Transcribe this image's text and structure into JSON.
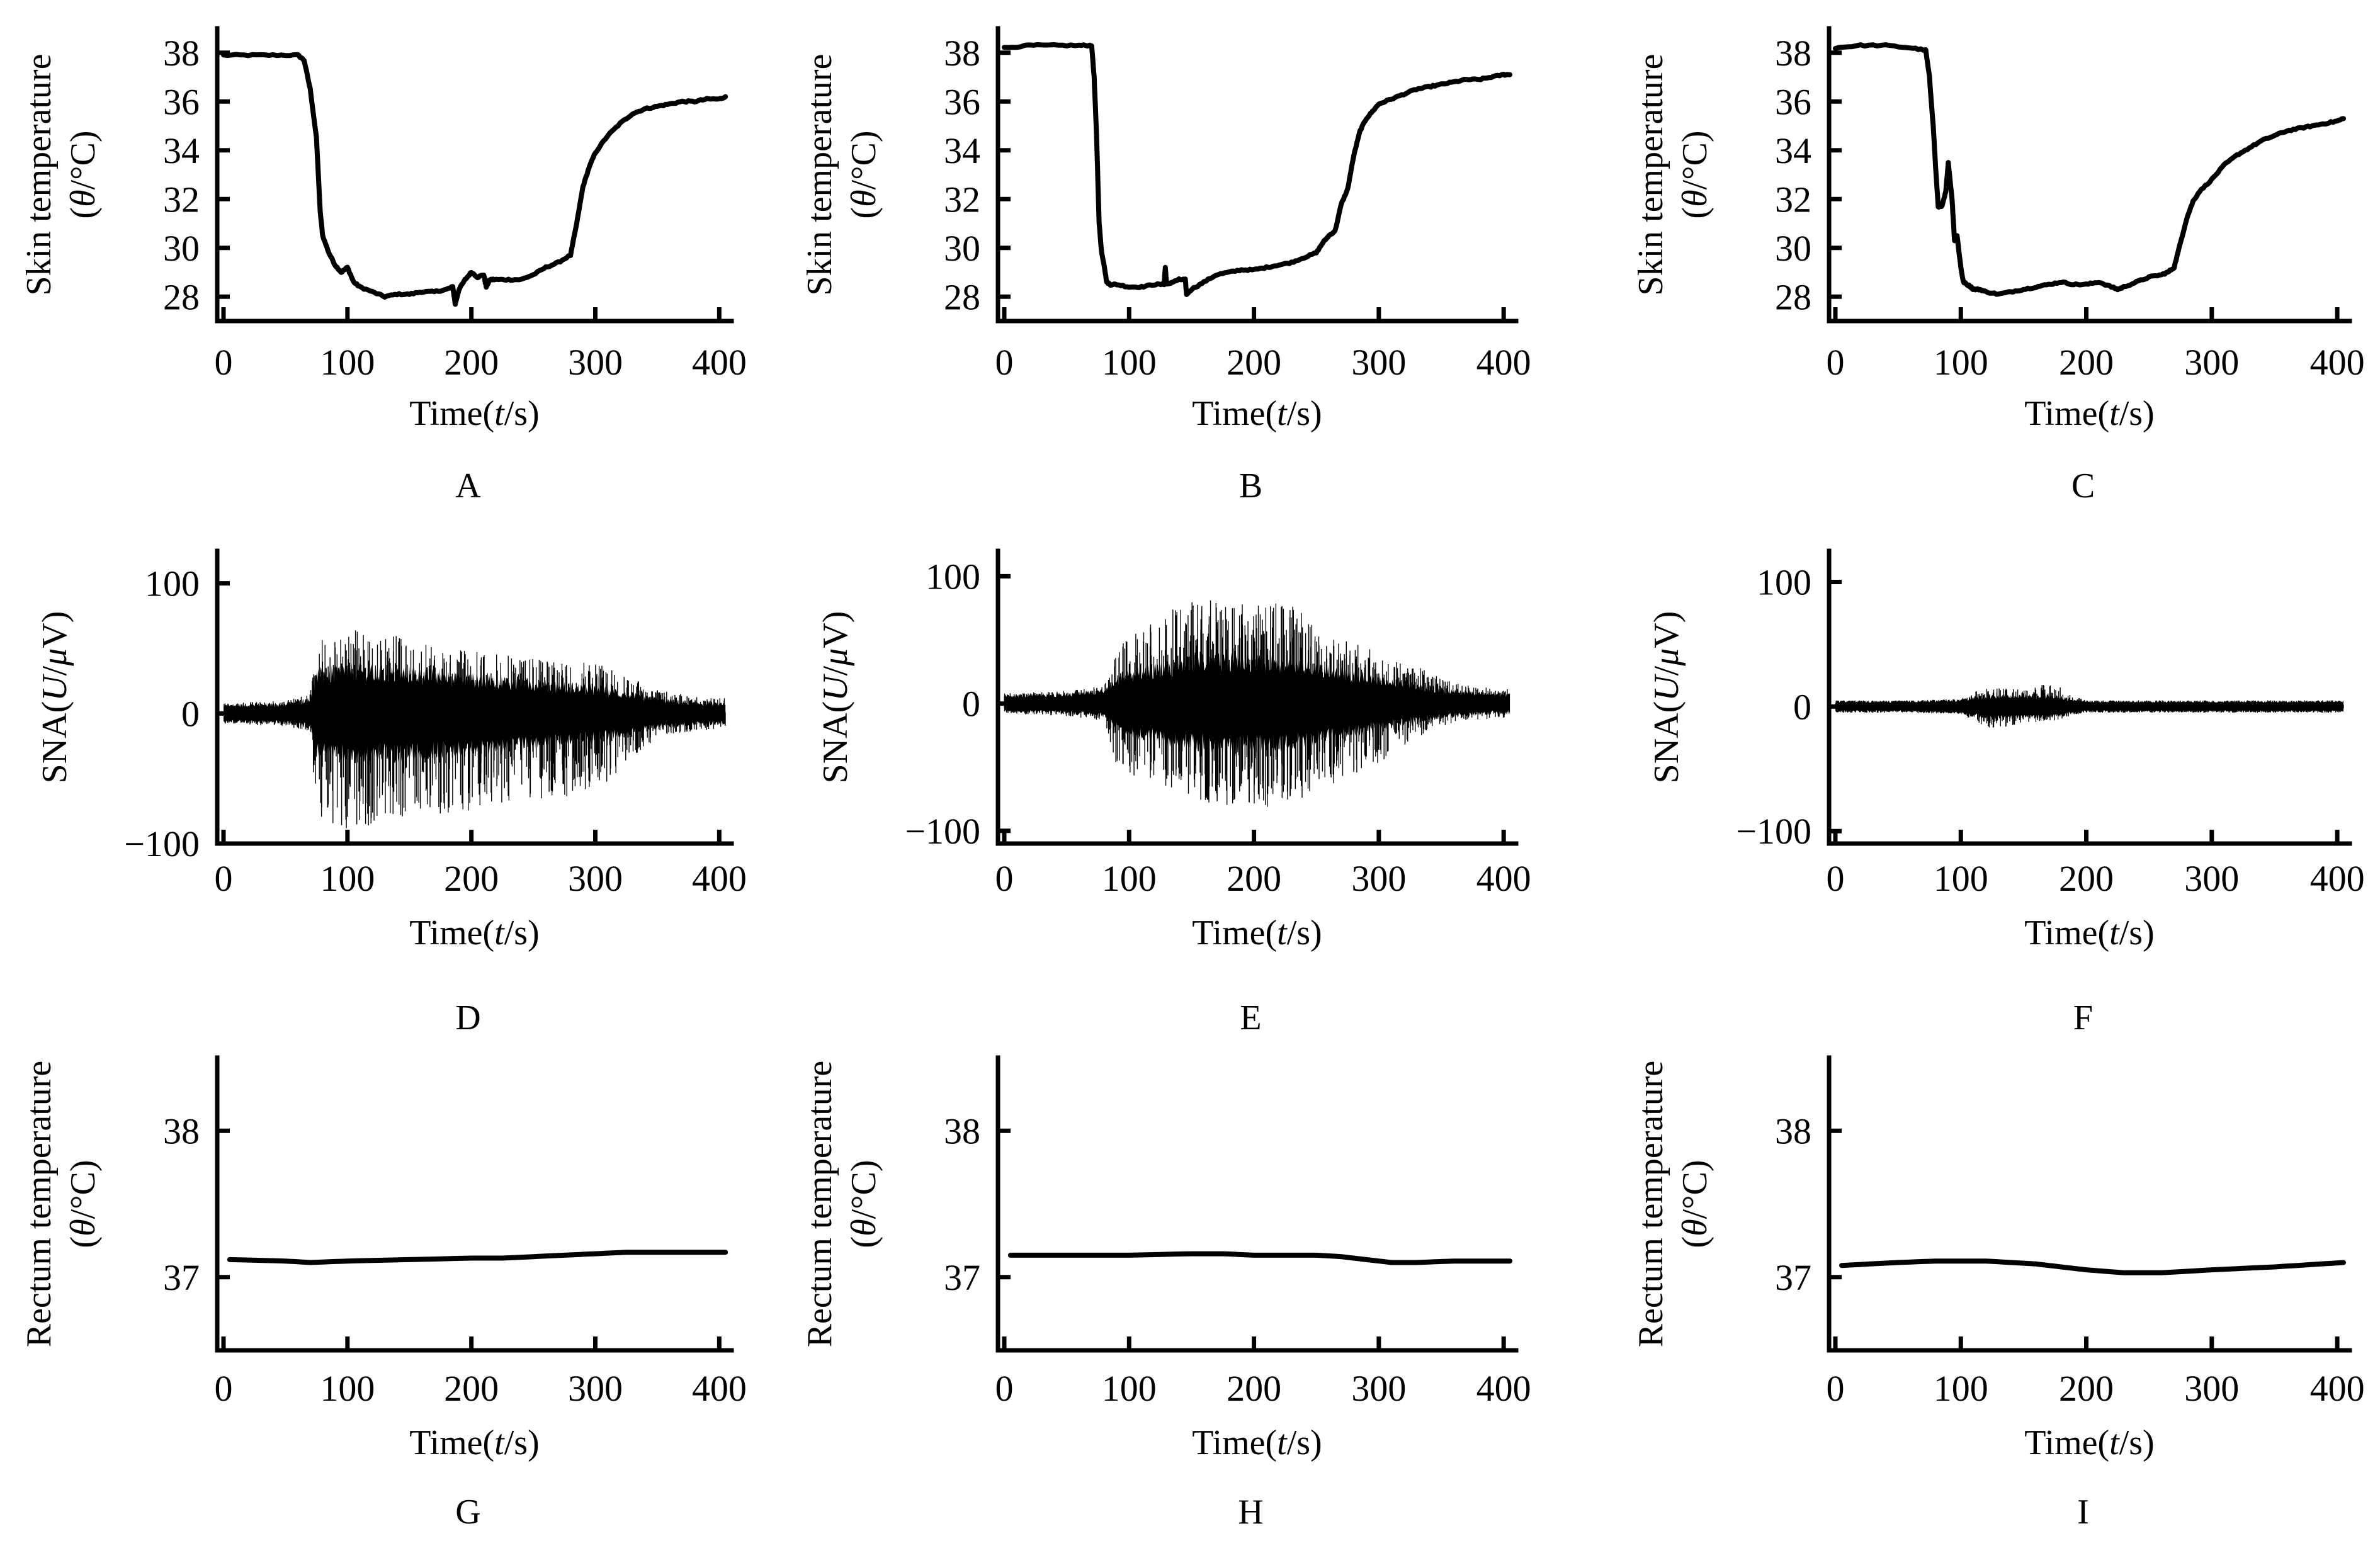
{
  "figure": {
    "panels": [
      "A",
      "B",
      "C",
      "D",
      "E",
      "F",
      "G",
      "H",
      "I"
    ]
  },
  "chart_data": [
    {
      "panel": "A",
      "type": "line",
      "ylabel_line1": "Skin temperature",
      "ylabel_line2": "(θ/°C)",
      "xlabel": "Time(t/s)",
      "xlim": [
        0,
        410
      ],
      "ylim": [
        27,
        39
      ],
      "xticks": [
        0,
        100,
        200,
        300,
        400
      ],
      "yticks": [
        28,
        30,
        32,
        34,
        36,
        38
      ],
      "grid": false,
      "series": [
        {
          "name": "Skin temperature",
          "x": [
            0,
            20,
            40,
            60,
            65,
            70,
            75,
            78,
            80,
            85,
            90,
            95,
            100,
            105,
            110,
            120,
            130,
            140,
            150,
            160,
            170,
            180,
            185,
            187,
            190,
            195,
            200,
            205,
            210,
            212,
            215,
            220,
            230,
            240,
            250,
            260,
            270,
            280,
            285,
            290,
            295,
            300,
            310,
            320,
            330,
            340,
            350,
            360,
            370,
            380,
            390,
            400,
            405
          ],
          "y": [
            37.9,
            37.9,
            37.9,
            37.9,
            37.7,
            36.5,
            34.5,
            31.5,
            30.5,
            29.8,
            29.3,
            29.0,
            29.2,
            28.6,
            28.4,
            28.2,
            28.0,
            28.1,
            28.1,
            28.2,
            28.2,
            28.3,
            28.4,
            27.7,
            28.3,
            28.7,
            29.0,
            28.8,
            28.9,
            28.4,
            28.7,
            28.7,
            28.7,
            28.7,
            28.9,
            29.2,
            29.4,
            29.7,
            31.0,
            32.5,
            33.3,
            33.9,
            34.6,
            35.1,
            35.5,
            35.7,
            35.8,
            35.9,
            36.0,
            36.0,
            36.1,
            36.1,
            36.2
          ]
        }
      ]
    },
    {
      "panel": "B",
      "type": "line",
      "ylabel_line1": "Skin temperature",
      "ylabel_line2": "(θ/°C)",
      "xlabel": "Time(t/s)",
      "xlim": [
        0,
        410
      ],
      "ylim": [
        27,
        39
      ],
      "xticks": [
        0,
        100,
        200,
        300,
        400
      ],
      "yticks": [
        28,
        30,
        32,
        34,
        36,
        38
      ],
      "grid": false,
      "series": [
        {
          "name": "Skin temperature",
          "x": [
            0,
            20,
            40,
            60,
            70,
            72,
            74,
            76,
            78,
            80,
            82,
            85,
            90,
            100,
            110,
            120,
            128,
            129,
            130,
            135,
            140,
            145,
            146,
            150,
            160,
            170,
            180,
            190,
            200,
            210,
            220,
            230,
            240,
            250,
            255,
            260,
            265,
            270,
            275,
            280,
            285,
            290,
            295,
            300,
            310,
            320,
            330,
            340,
            350,
            360,
            370,
            380,
            390,
            400,
            405
          ],
          "y": [
            38.2,
            38.3,
            38.3,
            38.3,
            38.3,
            37.0,
            34.5,
            31.0,
            29.8,
            29.3,
            28.6,
            28.5,
            28.5,
            28.4,
            28.4,
            28.5,
            28.5,
            29.2,
            28.5,
            28.6,
            28.7,
            28.7,
            28.1,
            28.3,
            28.6,
            28.9,
            29.0,
            29.1,
            29.1,
            29.2,
            29.3,
            29.4,
            29.6,
            29.8,
            30.2,
            30.5,
            30.7,
            31.8,
            32.4,
            33.8,
            34.8,
            35.3,
            35.6,
            35.9,
            36.1,
            36.3,
            36.5,
            36.6,
            36.7,
            36.8,
            36.9,
            36.9,
            37.0,
            37.1,
            37.1
          ]
        }
      ]
    },
    {
      "panel": "C",
      "type": "line",
      "ylabel_line1": "Skin temperature",
      "ylabel_line2": "(θ/°C)",
      "xlabel": "Time(t/s)",
      "xlim": [
        0,
        410
      ],
      "ylim": [
        27,
        39
      ],
      "xticks": [
        0,
        100,
        200,
        300,
        400
      ],
      "yticks": [
        28,
        30,
        32,
        34,
        36,
        38
      ],
      "grid": false,
      "series": [
        {
          "name": "Skin temperature",
          "x": [
            0,
            20,
            40,
            60,
            72,
            75,
            78,
            80,
            82,
            85,
            88,
            90,
            93,
            95,
            97,
            100,
            102,
            105,
            108,
            110,
            115,
            120,
            130,
            140,
            150,
            160,
            170,
            180,
            190,
            200,
            210,
            220,
            225,
            230,
            240,
            250,
            260,
            265,
            270,
            275,
            280,
            285,
            290,
            300,
            310,
            320,
            330,
            340,
            350,
            360,
            370,
            380,
            390,
            400,
            405
          ],
          "y": [
            38.2,
            38.3,
            38.3,
            38.2,
            38.1,
            37.0,
            35.0,
            33.2,
            31.7,
            31.7,
            32.3,
            33.5,
            32.0,
            30.3,
            30.5,
            29.2,
            28.6,
            28.5,
            28.4,
            28.3,
            28.3,
            28.2,
            28.1,
            28.2,
            28.3,
            28.4,
            28.5,
            28.6,
            28.5,
            28.5,
            28.6,
            28.4,
            28.3,
            28.4,
            28.6,
            28.8,
            28.9,
            29.0,
            29.2,
            30.2,
            31.2,
            31.9,
            32.3,
            32.8,
            33.4,
            33.8,
            34.1,
            34.4,
            34.6,
            34.8,
            34.9,
            35.0,
            35.1,
            35.2,
            35.3
          ]
        }
      ]
    },
    {
      "panel": "D",
      "type": "line",
      "ylabel": "SNA(U/μV)",
      "xlabel": "Time(t/s)",
      "xlim": [
        0,
        410
      ],
      "ylim": [
        -100,
        125
      ],
      "xticks": [
        0,
        100,
        200,
        300,
        400
      ],
      "yticks": [
        -100,
        0,
        100
      ],
      "grid": false,
      "series": [
        {
          "name": "SNA envelope",
          "x": [
            0,
            50,
            70,
            75,
            100,
            125,
            150,
            175,
            200,
            225,
            250,
            275,
            300,
            325,
            350,
            375,
            400,
            405
          ],
          "upper": [
            8,
            10,
            15,
            55,
            65,
            62,
            58,
            52,
            48,
            45,
            44,
            42,
            40,
            30,
            18,
            14,
            12,
            12
          ],
          "lower": [
            -8,
            -10,
            -15,
            -85,
            -90,
            -85,
            -82,
            -80,
            -75,
            -70,
            -68,
            -65,
            -60,
            -40,
            -18,
            -14,
            -12,
            -12
          ],
          "core": [
            6,
            7,
            10,
            28,
            32,
            30,
            30,
            28,
            26,
            24,
            22,
            20,
            18,
            14,
            10,
            8,
            7,
            7
          ]
        }
      ]
    },
    {
      "panel": "E",
      "type": "line",
      "ylabel": "SNA(U/μV)",
      "xlabel": "Time(t/s)",
      "xlim": [
        0,
        410
      ],
      "ylim": [
        -110,
        120
      ],
      "xticks": [
        0,
        100,
        200,
        300,
        400
      ],
      "yticks": [
        -100,
        0,
        100
      ],
      "grid": false,
      "series": [
        {
          "name": "SNA envelope",
          "x": [
            0,
            50,
            80,
            90,
            100,
            125,
            150,
            175,
            200,
            225,
            250,
            275,
            300,
            325,
            350,
            375,
            400,
            405
          ],
          "upper": [
            8,
            10,
            14,
            40,
            55,
            68,
            85,
            82,
            78,
            80,
            65,
            50,
            40,
            32,
            20,
            14,
            12,
            12
          ],
          "lower": [
            -8,
            -10,
            -14,
            -50,
            -55,
            -65,
            -75,
            -80,
            -82,
            -80,
            -70,
            -58,
            -48,
            -30,
            -18,
            -14,
            -12,
            -12
          ],
          "core": [
            6,
            7,
            9,
            18,
            22,
            26,
            30,
            32,
            32,
            30,
            26,
            22,
            18,
            14,
            10,
            8,
            7,
            7
          ]
        }
      ]
    },
    {
      "panel": "F",
      "type": "line",
      "ylabel": "SNA(U/μV)",
      "xlabel": "Time(t/s)",
      "xlim": [
        0,
        410
      ],
      "ylim": [
        -110,
        125
      ],
      "xticks": [
        0,
        100,
        200,
        300,
        400
      ],
      "yticks": [
        -100,
        0,
        100
      ],
      "grid": false,
      "series": [
        {
          "name": "SNA envelope",
          "x": [
            0,
            50,
            100,
            110,
            125,
            150,
            175,
            185,
            200,
            250,
            300,
            350,
            400,
            405
          ],
          "upper": [
            5,
            5,
            6,
            12,
            15,
            14,
            20,
            10,
            5,
            5,
            5,
            5,
            5,
            5
          ],
          "lower": [
            -5,
            -5,
            -6,
            -12,
            -18,
            -14,
            -12,
            -8,
            -5,
            -5,
            -5,
            -5,
            -5,
            -5
          ],
          "core": [
            4,
            4,
            5,
            7,
            8,
            8,
            8,
            6,
            4,
            4,
            4,
            4,
            4,
            4
          ]
        }
      ]
    },
    {
      "panel": "G",
      "type": "line",
      "ylabel_line1": "Rectum temperature",
      "ylabel_line2": "(θ/°C)",
      "xlabel": "Time(t/s)",
      "xlim": [
        0,
        410
      ],
      "ylim": [
        36.5,
        38.5
      ],
      "xticks": [
        0,
        100,
        200,
        300,
        400
      ],
      "yticks": [
        37,
        38
      ],
      "grid": false,
      "series": [
        {
          "name": "Rectum temperature",
          "x": [
            5,
            50,
            70,
            100,
            150,
            200,
            225,
            250,
            275,
            300,
            325,
            350,
            375,
            405
          ],
          "y": [
            37.12,
            37.11,
            37.1,
            37.11,
            37.12,
            37.13,
            37.13,
            37.14,
            37.15,
            37.16,
            37.17,
            37.17,
            37.17,
            37.17
          ]
        }
      ]
    },
    {
      "panel": "H",
      "type": "line",
      "ylabel_line1": "Rectum temperature",
      "ylabel_line2": "(θ/°C)",
      "xlabel": "Time(t/s)",
      "xlim": [
        0,
        410
      ],
      "ylim": [
        36.5,
        38.5
      ],
      "xticks": [
        0,
        100,
        200,
        300,
        400
      ],
      "yticks": [
        37,
        38
      ],
      "grid": false,
      "series": [
        {
          "name": "Rectum temperature",
          "x": [
            5,
            50,
            100,
            150,
            175,
            200,
            250,
            270,
            290,
            310,
            330,
            360,
            405
          ],
          "y": [
            37.15,
            37.15,
            37.15,
            37.16,
            37.16,
            37.15,
            37.15,
            37.14,
            37.12,
            37.1,
            37.1,
            37.11,
            37.11
          ]
        }
      ]
    },
    {
      "panel": "I",
      "type": "line",
      "ylabel_line1": "Rectum temperature",
      "ylabel_line2": "(θ/°C)",
      "xlabel": "Time(t/s)",
      "xlim": [
        0,
        410
      ],
      "ylim": [
        36.5,
        38.5
      ],
      "xticks": [
        0,
        100,
        200,
        300,
        400
      ],
      "yticks": [
        37,
        38
      ],
      "grid": false,
      "series": [
        {
          "name": "Rectum temperature",
          "x": [
            5,
            50,
            80,
            100,
            120,
            160,
            180,
            200,
            230,
            260,
            300,
            350,
            405
          ],
          "y": [
            37.08,
            37.1,
            37.11,
            37.11,
            37.11,
            37.09,
            37.07,
            37.05,
            37.03,
            37.03,
            37.05,
            37.07,
            37.1
          ]
        }
      ]
    }
  ]
}
